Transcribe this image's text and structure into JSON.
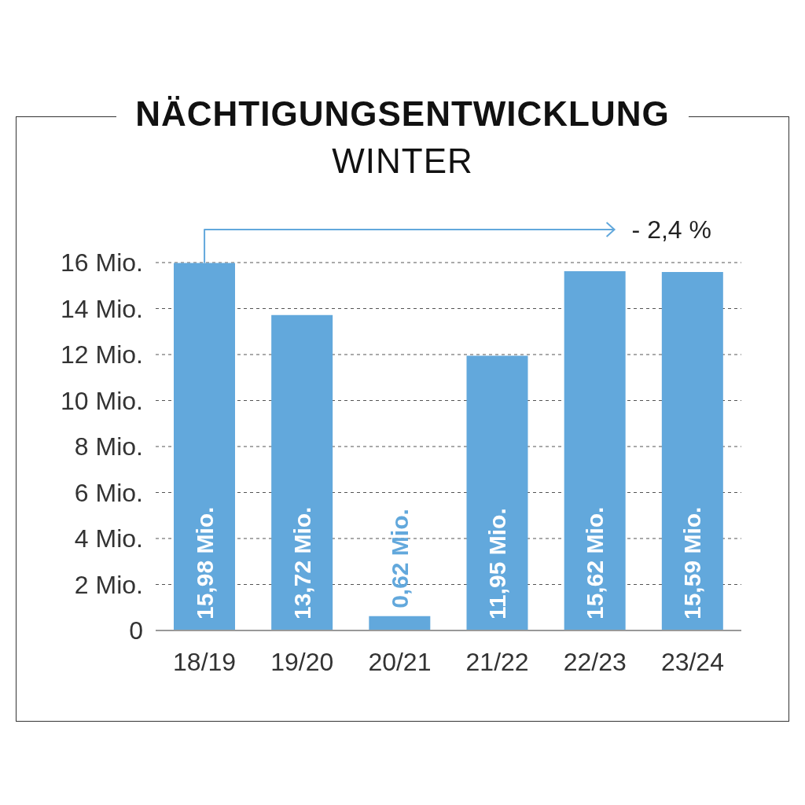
{
  "chart_data": {
    "type": "bar",
    "title": "NÄCHTIGUNGSENTWICKLUNG",
    "subtitle": "WINTER",
    "categories": [
      "18/19",
      "19/20",
      "20/21",
      "21/22",
      "22/23",
      "23/24"
    ],
    "values": [
      15.98,
      13.72,
      0.62,
      11.95,
      15.62,
      15.59
    ],
    "value_labels": [
      "15,98 Mio.",
      "13,72 Mio.",
      "0,62 Mio.",
      "11,95 Mio.",
      "15,62 Mio.",
      "15,59 Mio."
    ],
    "color": "#62a8dc",
    "ylim": [
      0,
      16
    ],
    "yticks": [
      0,
      {
        "value": 2,
        "label": "2 Mio."
      },
      {
        "value": 4,
        "label": "4 Mio."
      },
      {
        "value": 6,
        "label": "6 Mio."
      },
      {
        "value": 8,
        "label": "8 Mio."
      },
      {
        "value": 10,
        "label": "10 Mio."
      },
      {
        "value": 12,
        "label": "12 Mio."
      },
      {
        "value": 14,
        "label": "14 Mio."
      },
      {
        "value": 16,
        "label": "16 Mio."
      }
    ],
    "grid": "y",
    "annotations": [
      "- 2,4 %"
    ]
  }
}
